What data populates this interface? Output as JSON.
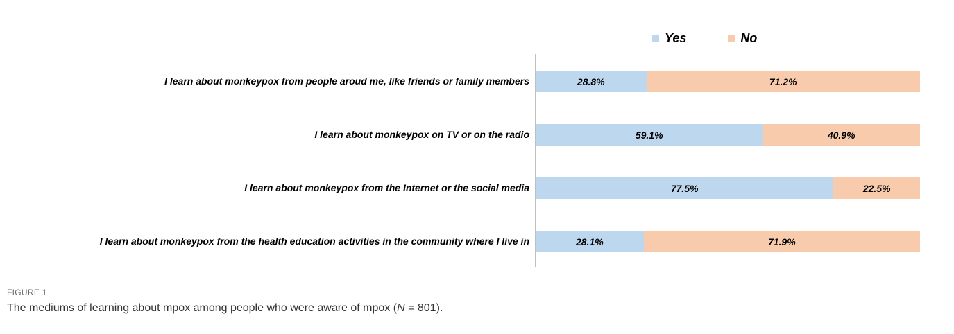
{
  "figure": {
    "label": "FIGURE 1",
    "caption_main": "The mediums of learning about mpox among people who were aware of mpox (",
    "caption_n_symbol": "N",
    "caption_n_value": " = 801)."
  },
  "colors": {
    "yes": "#bdd7ee",
    "no": "#f8cbad",
    "axis": "#bfbfbf"
  },
  "chart_data": {
    "type": "bar",
    "stacked": true,
    "orientation": "horizontal",
    "categories": [
      "I learn about monkeypox from people aroud me, like friends or family members",
      "I learn about monkeypox on TV or on the radio",
      "I learn about monkeypox from the Internet or the social media",
      "I learn about monkeypox from the health education activities in the community where I live in"
    ],
    "series": [
      {
        "name": "Yes",
        "values": [
          28.8,
          59.1,
          77.5,
          28.1
        ],
        "labels": [
          "28.8%",
          "59.1%",
          "77.5%",
          "28.1%"
        ]
      },
      {
        "name": "No",
        "values": [
          71.2,
          40.9,
          22.5,
          71.9
        ],
        "labels": [
          "71.2%",
          "40.9%",
          "22.5%",
          "71.9%"
        ]
      }
    ],
    "xlim": [
      0,
      100
    ],
    "legend_position": "top",
    "grid": false
  }
}
